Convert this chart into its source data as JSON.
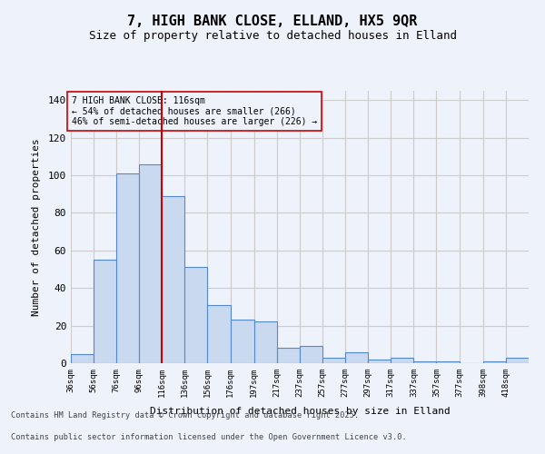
{
  "title_line1": "7, HIGH BANK CLOSE, ELLAND, HX5 9QR",
  "title_line2": "Size of property relative to detached houses in Elland",
  "xlabel": "Distribution of detached houses by size in Elland",
  "ylabel": "Number of detached properties",
  "bar_edges": [
    36,
    56,
    76,
    96,
    116,
    136,
    156,
    176,
    197,
    217,
    237,
    257,
    277,
    297,
    317,
    337,
    357,
    377,
    398,
    418,
    438
  ],
  "bar_heights": [
    5,
    55,
    101,
    106,
    89,
    51,
    31,
    23,
    22,
    8,
    9,
    3,
    6,
    2,
    3,
    1,
    1,
    0,
    1,
    3
  ],
  "bar_color": "#c9d9f0",
  "bar_edge_color": "#5588cc",
  "grid_color": "#cccccc",
  "background_color": "#eef2fb",
  "ref_line_x": 116,
  "ref_line_color": "#cc0000",
  "annotation_text": "7 HIGH BANK CLOSE: 116sqm\n← 54% of detached houses are smaller (266)\n46% of semi-detached houses are larger (226) →",
  "annotation_box_color": "#cc0000",
  "ylim": [
    0,
    145
  ],
  "yticks": [
    0,
    20,
    40,
    60,
    80,
    100,
    120,
    140
  ],
  "footer_line1": "Contains HM Land Registry data © Crown copyright and database right 2025.",
  "footer_line2": "Contains public sector information licensed under the Open Government Licence v3.0."
}
